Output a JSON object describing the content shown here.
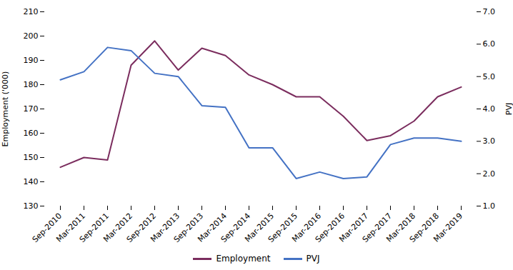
{
  "chart_data": {
    "type": "line",
    "categories": [
      "Sep-2010",
      "Mar-2011",
      "Sep-2011",
      "Mar-2012",
      "Sep-2012",
      "Mar-2013",
      "Sep-2013",
      "Mar-2014",
      "Sep-2014",
      "Mar-2015",
      "Sep-2015",
      "Mar-2016",
      "Sep-2016",
      "Mar-2017",
      "Sep-2017",
      "Mar-2018",
      "Sep-2018",
      "Mar-2019"
    ],
    "series": [
      {
        "name": "Employment",
        "color": "#7B2D5E",
        "values": [
          146,
          150,
          149,
          188,
          198,
          186,
          195,
          192,
          184,
          180,
          175,
          175,
          167,
          157,
          159,
          165,
          175,
          179
        ]
      },
      {
        "name": "PVJ",
        "color": "#4472C4",
        "axis": "y2",
        "values": [
          4.9,
          5.15,
          5.9,
          5.8,
          5.1,
          5.0,
          4.1,
          4.05,
          2.8,
          2.8,
          1.85,
          2.05,
          1.85,
          1.9,
          2.9,
          3.1,
          3.1,
          3.0
        ]
      }
    ],
    "ylabel": "Employment ('000)",
    "y2label": "PVJ",
    "ylim": [
      130,
      210
    ],
    "yticks": [
      130,
      140,
      150,
      160,
      170,
      180,
      190,
      200,
      210
    ],
    "y2lim": [
      1.0,
      7.0
    ],
    "y2ticks": [
      {
        "value": 1,
        "label": "1.0"
      },
      {
        "value": 2,
        "label": "2.0"
      },
      {
        "value": 3,
        "label": "3.0"
      },
      {
        "value": 4,
        "label": "4.0"
      },
      {
        "value": 5,
        "label": "5.0"
      },
      {
        "value": 6,
        "label": "6.0"
      },
      {
        "value": 7,
        "label": "7.0"
      }
    ],
    "legend": "bottom"
  }
}
